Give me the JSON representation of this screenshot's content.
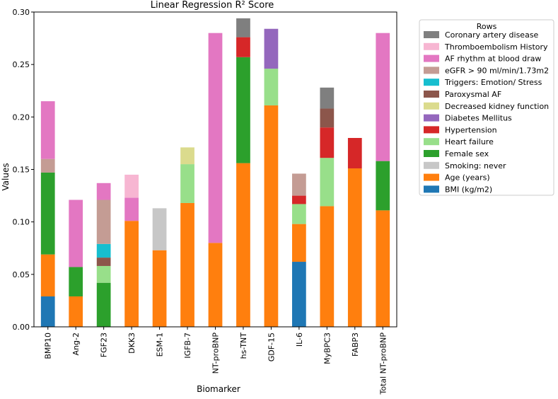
{
  "chart_data": {
    "type": "bar",
    "stacked": true,
    "title": "Linear Regression R² Score",
    "xlabel": "Biomarker",
    "ylabel": "Values",
    "ylim": [
      0,
      0.3
    ],
    "yticks": [
      "0.00",
      "0.05",
      "0.10",
      "0.15",
      "0.20",
      "0.25",
      "0.30"
    ],
    "grid": false,
    "legend_title": "Rows",
    "legend_position": "outside-right",
    "categories": [
      "BMP10",
      "Ang-2",
      "FGF23",
      "DKK3",
      "ESM-1",
      "IGFB-7",
      "NT-proBNP",
      "hs-TNT",
      "GDF-15",
      "IL-6",
      "MyBPC3",
      "FABP3",
      "Total NT-proBNP"
    ],
    "series": [
      {
        "name": "BMI (kg/m2)",
        "color": "#1f77b4",
        "values": [
          0.029,
          0,
          0,
          0,
          0,
          0,
          0,
          0,
          0,
          0.062,
          0,
          0,
          0
        ]
      },
      {
        "name": "Age (years)",
        "color": "#ff7f0e",
        "values": [
          0.04,
          0.029,
          0,
          0.101,
          0.073,
          0.118,
          0.08,
          0.156,
          0.211,
          0.036,
          0.115,
          0.151,
          0.111
        ]
      },
      {
        "name": "Smoking: never",
        "color": "#c7c7c7",
        "values": [
          0,
          0,
          0,
          0,
          0.04,
          0,
          0,
          0,
          0,
          0,
          0,
          0,
          0
        ]
      },
      {
        "name": "Female sex",
        "color": "#2ca02c",
        "values": [
          0.078,
          0.028,
          0.042,
          0,
          0,
          0,
          0,
          0.101,
          0,
          0,
          0,
          0,
          0.047
        ]
      },
      {
        "name": "Heart failure",
        "color": "#98df8a",
        "values": [
          0,
          0,
          0.016,
          0,
          0,
          0.037,
          0,
          0,
          0.035,
          0.019,
          0.046,
          0,
          0
        ]
      },
      {
        "name": "Hypertension",
        "color": "#d62728",
        "values": [
          0,
          0,
          0,
          0,
          0,
          0,
          0,
          0.019,
          0,
          0.008,
          0.029,
          0.029,
          0
        ]
      },
      {
        "name": "Diabetes Mellitus",
        "color": "#9467bd",
        "values": [
          0,
          0,
          0,
          0,
          0,
          0,
          0,
          0,
          0.038,
          0,
          0,
          0,
          0
        ]
      },
      {
        "name": "Decreased kidney function",
        "color": "#dbdb8d",
        "values": [
          0,
          0,
          0,
          0,
          0,
          0.016,
          0,
          0,
          0,
          0,
          0,
          0,
          0
        ]
      },
      {
        "name": "Paroxysmal AF",
        "color": "#8c564b",
        "values": [
          0,
          0,
          0.008,
          0,
          0,
          0,
          0,
          0,
          0,
          0,
          0.018,
          0,
          0
        ]
      },
      {
        "name": "Triggers: Emotion/ Stress",
        "color": "#17becf",
        "values": [
          0,
          0,
          0.013,
          0,
          0,
          0,
          0,
          0,
          0,
          0,
          0,
          0,
          0
        ]
      },
      {
        "name": "eGFR > 90 ml/min/1.73m2",
        "color": "#c49c94",
        "values": [
          0.013,
          0,
          0.042,
          0,
          0,
          0,
          0,
          0,
          0,
          0.021,
          0,
          0,
          0
        ]
      },
      {
        "name": "AF rhythm at blood draw",
        "color": "#e377c2",
        "values": [
          0.055,
          0.064,
          0.016,
          0.022,
          0,
          0,
          0.2,
          0,
          0,
          0,
          0,
          0,
          0.122
        ]
      },
      {
        "name": "Thromboembolism History",
        "color": "#f7b6d2",
        "values": [
          0,
          0,
          0,
          0.022,
          0,
          0,
          0,
          0,
          0,
          0,
          0,
          0,
          0
        ]
      },
      {
        "name": "Coronary artery disease",
        "color": "#7f7f7f",
        "values": [
          0,
          0,
          0,
          0,
          0,
          0,
          0,
          0.018,
          0,
          0,
          0.02,
          0,
          0
        ]
      }
    ]
  }
}
